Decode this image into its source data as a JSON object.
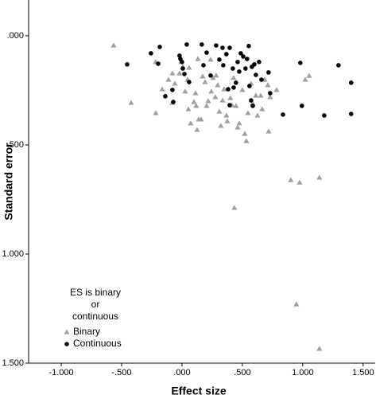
{
  "chart_data": {
    "type": "scatter",
    "xlabel": "Effect size",
    "ylabel": "Standard error",
    "xlim": [
      -1.27,
      1.6
    ],
    "ylim": [
      -0.164,
      1.5
    ],
    "y_reversed": true,
    "xticks": [
      {
        "value": -1,
        "label": "-1.000"
      },
      {
        "value": -0.5,
        "label": "-.500"
      },
      {
        "value": 0,
        "label": ".000"
      },
      {
        "value": 0.5,
        "label": ".500"
      },
      {
        "value": 1,
        "label": "1.000"
      },
      {
        "value": 1.5,
        "label": "1.500"
      }
    ],
    "yticks": [
      {
        "value": 0,
        "label": ".000"
      },
      {
        "value": 0.5,
        "label": ".500"
      },
      {
        "value": 1,
        "label": "1.000"
      },
      {
        "value": 1.5,
        "label": "1.500"
      }
    ],
    "legend_title": [
      "ES is binary",
      "or",
      "continuous"
    ],
    "legend_position": "lower left",
    "series": [
      {
        "name": "Binary",
        "color": "#a0a0a0",
        "marker": "triangle",
        "x": [
          -0.566,
          -0.421,
          -0.217,
          -0.217,
          -0.164,
          -0.112,
          -0.079,
          -0.079,
          -0.059,
          -0.02,
          -0.007,
          0.007,
          0.026,
          0.046,
          0.053,
          0.072,
          0.099,
          0.112,
          0.125,
          0.132,
          0.138,
          0.158,
          0.171,
          0.191,
          0.204,
          0.217,
          0.237,
          0.243,
          0.257,
          0.276,
          0.296,
          0.309,
          0.322,
          0.336,
          0.349,
          0.368,
          0.375,
          0.401,
          0.414,
          0.428,
          0.447,
          0.461,
          0.474,
          0.5,
          0.52,
          0.533,
          0.546,
          0.572,
          0.586,
          0.612,
          0.625,
          0.651,
          0.664,
          0.684,
          0.711,
          0.73,
          0.783,
          0.717,
          1.02,
          1.053,
          0.901,
          0.974,
          1.138,
          0.434,
          0.947,
          1.138,
          0.059,
          0.283,
          0.118
        ],
        "y": [
          0.044,
          0.307,
          0.12,
          0.354,
          0.245,
          0.201,
          0.172,
          0.307,
          0.219,
          0.172,
          0.12,
          0.142,
          0.255,
          0.201,
          0.336,
          0.401,
          0.303,
          0.263,
          0.431,
          0.106,
          0.383,
          0.383,
          0.186,
          0.212,
          0.321,
          0.299,
          0.109,
          0.255,
          0.193,
          0.281,
          0.226,
          0.347,
          0.412,
          0.296,
          0.245,
          0.365,
          0.391,
          0.285,
          0.318,
          0.193,
          0.321,
          0.42,
          0.401,
          0.248,
          0.449,
          0.482,
          0.354,
          0.219,
          0.31,
          0.274,
          0.365,
          0.274,
          0.336,
          0.201,
          0.226,
          0.281,
          0.248,
          0.438,
          0.201,
          0.183,
          0.661,
          0.672,
          0.65,
          0.788,
          1.23,
          1.434,
          0.146,
          0.182,
          0.321
        ]
      },
      {
        "name": "Continuous",
        "color": "#000000",
        "marker": "circle",
        "x": [
          -0.454,
          -0.257,
          -0.184,
          -0.197,
          -0.138,
          -0.079,
          -0.072,
          -0.02,
          -0.013,
          0.0,
          0.007,
          0.02,
          0.039,
          0.059,
          0.164,
          0.178,
          0.204,
          0.237,
          0.283,
          0.309,
          0.336,
          0.342,
          0.368,
          0.382,
          0.395,
          0.395,
          0.421,
          0.447,
          0.461,
          0.474,
          0.487,
          0.507,
          0.526,
          0.539,
          0.553,
          0.559,
          0.572,
          0.579,
          0.599,
          0.612,
          0.638,
          0.658,
          0.717,
          0.73,
          0.836,
          0.98,
          0.993,
          1.178,
          1.296,
          1.401,
          1.401,
          0.428,
          0.586
        ],
        "y": [
          0.131,
          0.08,
          0.051,
          0.128,
          0.277,
          0.248,
          0.303,
          0.091,
          0.106,
          0.12,
          0.15,
          0.175,
          0.04,
          0.212,
          0.04,
          0.135,
          0.077,
          0.182,
          0.044,
          0.109,
          0.055,
          0.135,
          0.084,
          0.245,
          0.055,
          0.318,
          0.15,
          0.215,
          0.12,
          0.164,
          0.08,
          0.095,
          0.15,
          0.106,
          0.047,
          0.23,
          0.296,
          0.142,
          0.131,
          0.179,
          0.12,
          0.201,
          0.168,
          0.263,
          0.361,
          0.124,
          0.321,
          0.365,
          0.135,
          0.215,
          0.358,
          0.237,
          0.321
        ]
      }
    ]
  }
}
